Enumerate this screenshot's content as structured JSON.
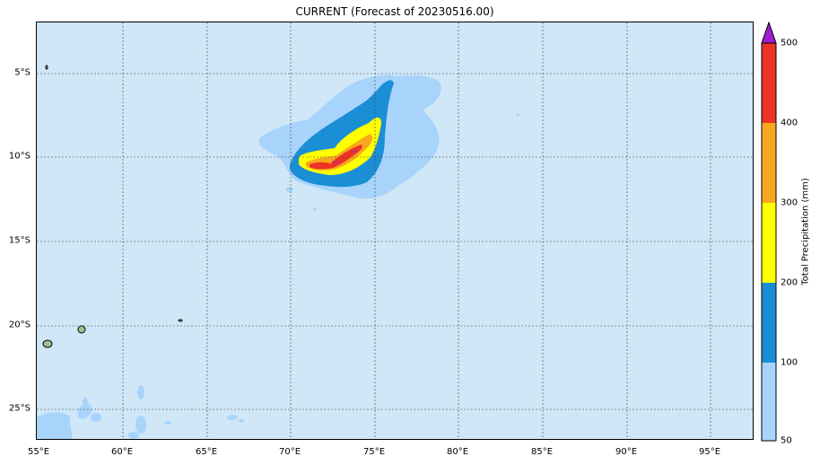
{
  "title": "CURRENT (Forecast of 20230516.00)",
  "x_axis": {
    "ticks": [
      "55°E",
      "60°E",
      "65°E",
      "70°E",
      "75°E",
      "80°E",
      "85°E",
      "90°E",
      "95°E"
    ]
  },
  "y_axis": {
    "ticks": [
      "5°S",
      "10°S",
      "15°S",
      "20°S",
      "25°S"
    ]
  },
  "colorbar": {
    "label": "Total Precipitation (mm)",
    "ticks": [
      "50",
      "100",
      "200",
      "300",
      "400",
      "500"
    ],
    "colors": {
      "50-100": "#a8d4fb",
      "100-200": "#1a8fd6",
      "200-300": "#ffff00",
      "300-400": "#f8a81e",
      "400-500": "#ee3324",
      ">500": "#9b1fd0"
    }
  },
  "background_color": "#cfe7f7"
}
